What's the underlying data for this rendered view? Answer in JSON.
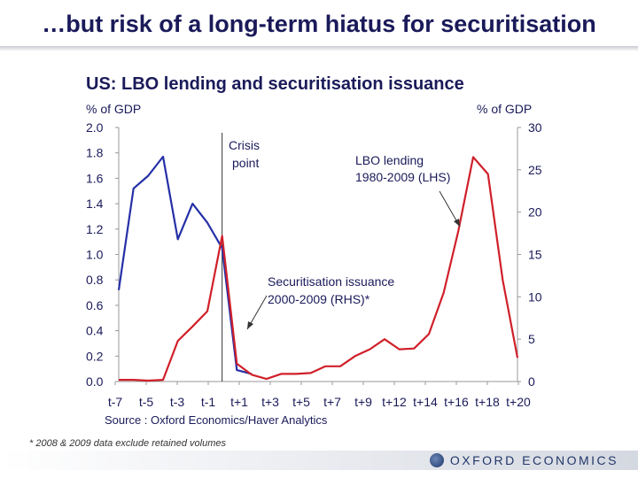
{
  "slide": {
    "title": "…but risk of a long-term hiatus for securitisation",
    "footnote": "* 2008 & 2009 data exclude retained volumes",
    "logo_text": "OXFORD ECONOMICS"
  },
  "chart_data": {
    "type": "line",
    "title": "US: LBO lending and securitisation issuance",
    "ylabel_left": "% of GDP",
    "ylabel_right": "% of GDP",
    "ylim_left": [
      0,
      2.0
    ],
    "ylim_right": [
      0,
      30
    ],
    "yticks_left": [
      "2.0",
      "1.8",
      "1.6",
      "1.4",
      "1.2",
      "1.0",
      "0.8",
      "0.6",
      "0.4",
      "0.2",
      "0.0"
    ],
    "yticks_right": [
      "30",
      "25",
      "20",
      "15",
      "10",
      "5",
      "0"
    ],
    "x_ticks": [
      "t-7",
      "t-5",
      "t-3",
      "t-1",
      "t+1",
      "t+3",
      "t+5",
      "t+7",
      "t+9",
      "t+12",
      "t+14",
      "t+16",
      "t+18",
      "t+20"
    ],
    "source": "Source : Oxford Economics/Haver Analytics",
    "grid": false,
    "series": [
      {
        "label": "LBO lending 1980-2009 (LHS)",
        "axis": "left",
        "color": "#2530a6",
        "x": [
          -7,
          -6,
          -5,
          -4,
          -3,
          -2,
          -1,
          0,
          1,
          2
        ],
        "values": [
          0.72,
          1.52,
          1.62,
          1.77,
          1.12,
          1.4,
          1.25,
          1.05,
          0.09,
          0.06
        ]
      },
      {
        "label": "Securitisation issuance 2000-2009 (RHS)*",
        "axis": "right",
        "color": "#d0202a",
        "x": [
          -7,
          -6,
          -5,
          -4,
          -3,
          -2,
          -1,
          0,
          1,
          2,
          3,
          4,
          5,
          6,
          7,
          8,
          9,
          10,
          11,
          12,
          13,
          14,
          15,
          16,
          17,
          18,
          19,
          20
        ],
        "values": [
          0.2,
          0.2,
          0.1,
          0.2,
          4.8,
          6.5,
          8.3,
          17.2,
          2.1,
          0.8,
          0.3,
          0.9,
          0.9,
          1.0,
          1.8,
          1.8,
          3.0,
          3.8,
          5.0,
          3.8,
          3.9,
          5.6,
          10.5,
          17.8,
          26.5,
          24.5,
          12.0,
          2.8
        ]
      }
    ],
    "crisis_marker": {
      "x": 0,
      "label_lines": [
        "Crisis",
        "point"
      ]
    },
    "annotations": {
      "lbo_lines": [
        "LBO lending",
        "1980-2009 (LHS)"
      ],
      "sec_lines": [
        "Securitisation issuance",
        "2000-2009 (RHS)*"
      ]
    }
  }
}
